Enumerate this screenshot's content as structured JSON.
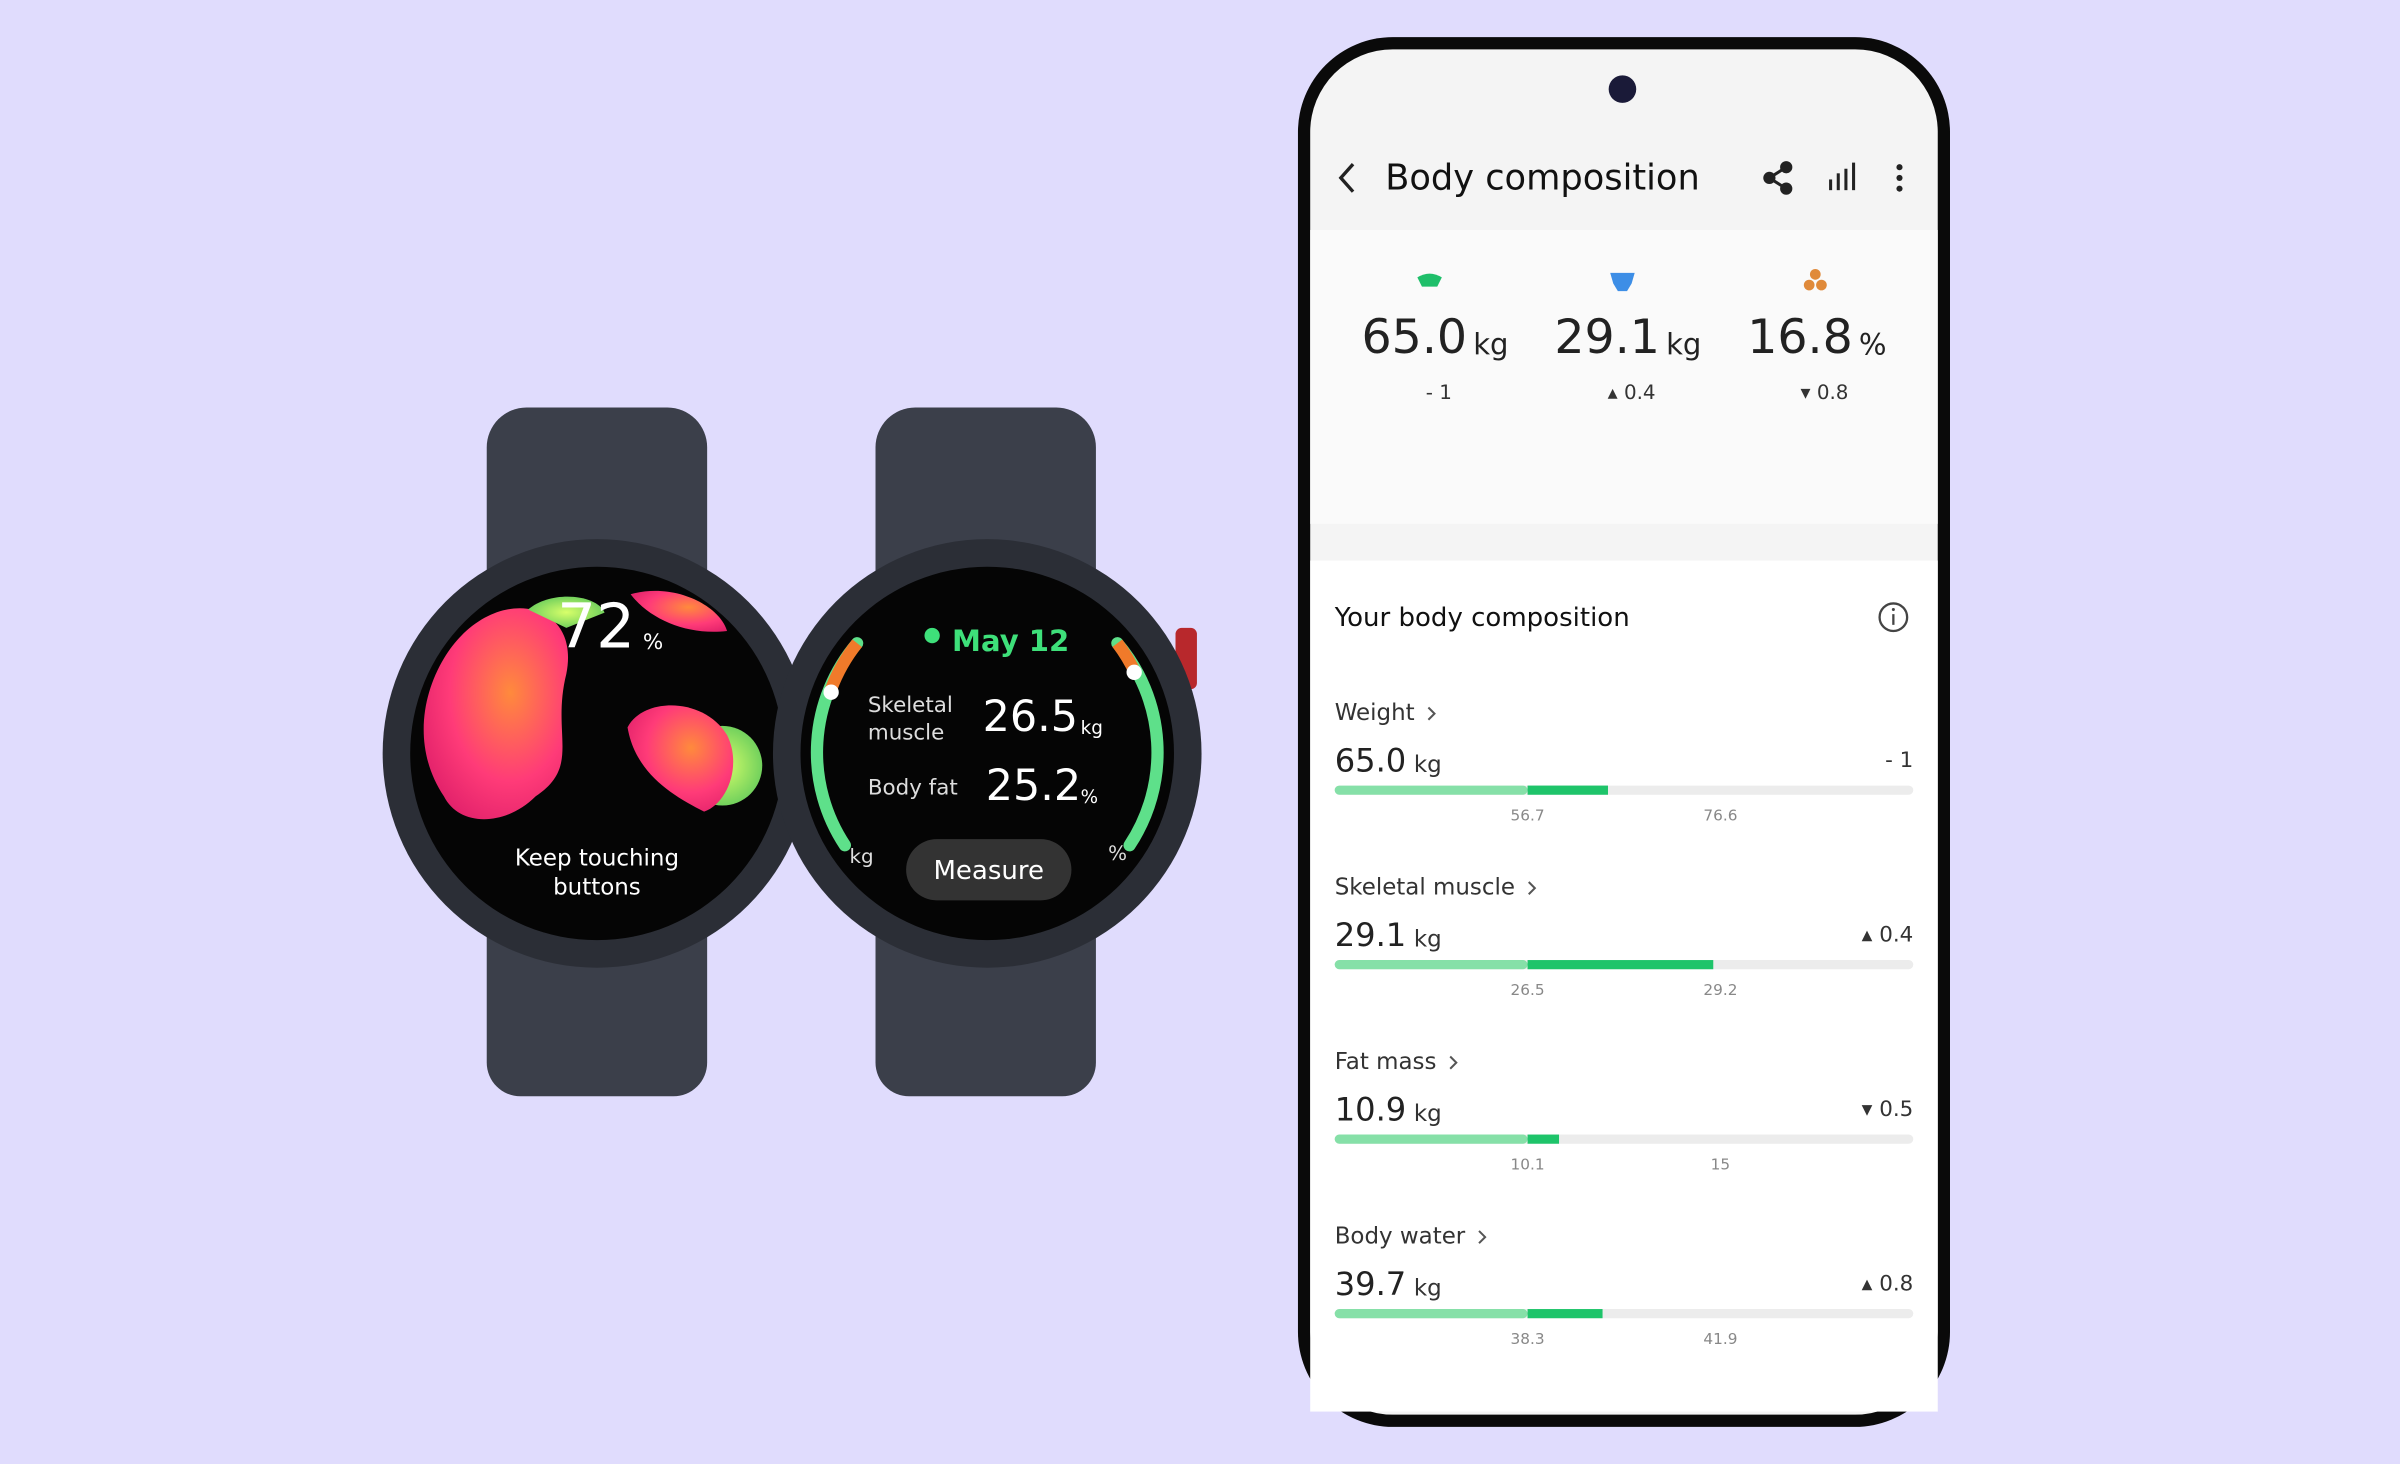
{
  "watch_left": {
    "percent": "72",
    "percent_unit": "%",
    "hint_lines": [
      "Keep touching",
      "buttons"
    ]
  },
  "watch_right": {
    "date": "May 12",
    "rows": [
      {
        "label_lines": [
          "Skeletal",
          "muscle"
        ],
        "value": "26.5",
        "unit": "kg"
      },
      {
        "label_lines": [
          "Body fat"
        ],
        "value": "25.2",
        "unit": "%"
      }
    ],
    "left_arc_unit": "kg",
    "right_arc_unit": "%",
    "button": "Measure"
  },
  "phone": {
    "header": {
      "title": "Body composition"
    },
    "summary": [
      {
        "value": "65.0",
        "unit": "kg",
        "delta": "- 1"
      },
      {
        "value": "29.1",
        "unit": "kg",
        "delta": "▴ 0.4"
      },
      {
        "value": "16.8",
        "unit": "%",
        "delta": "▾ 0.8"
      }
    ],
    "section_title": "Your body composition",
    "items": [
      {
        "name": "Weight",
        "value": 65.0,
        "value_label": "65.0",
        "unit": "kg",
        "delta": "- 1",
        "low": 56.7,
        "high": 76.6
      },
      {
        "name": "Skeletal muscle",
        "value": 29.1,
        "unit": "kg",
        "delta": "▴ 0.4",
        "low": 26.5,
        "high": 29.2
      },
      {
        "name": "Fat mass",
        "value": 10.9,
        "unit": "kg",
        "delta": "▾ 0.5",
        "low": 10.1,
        "high": 15
      },
      {
        "name": "Body water",
        "value": 39.7,
        "unit": "kg",
        "delta": "▴ 0.8",
        "low": 38.3,
        "high": 41.9
      }
    ]
  }
}
